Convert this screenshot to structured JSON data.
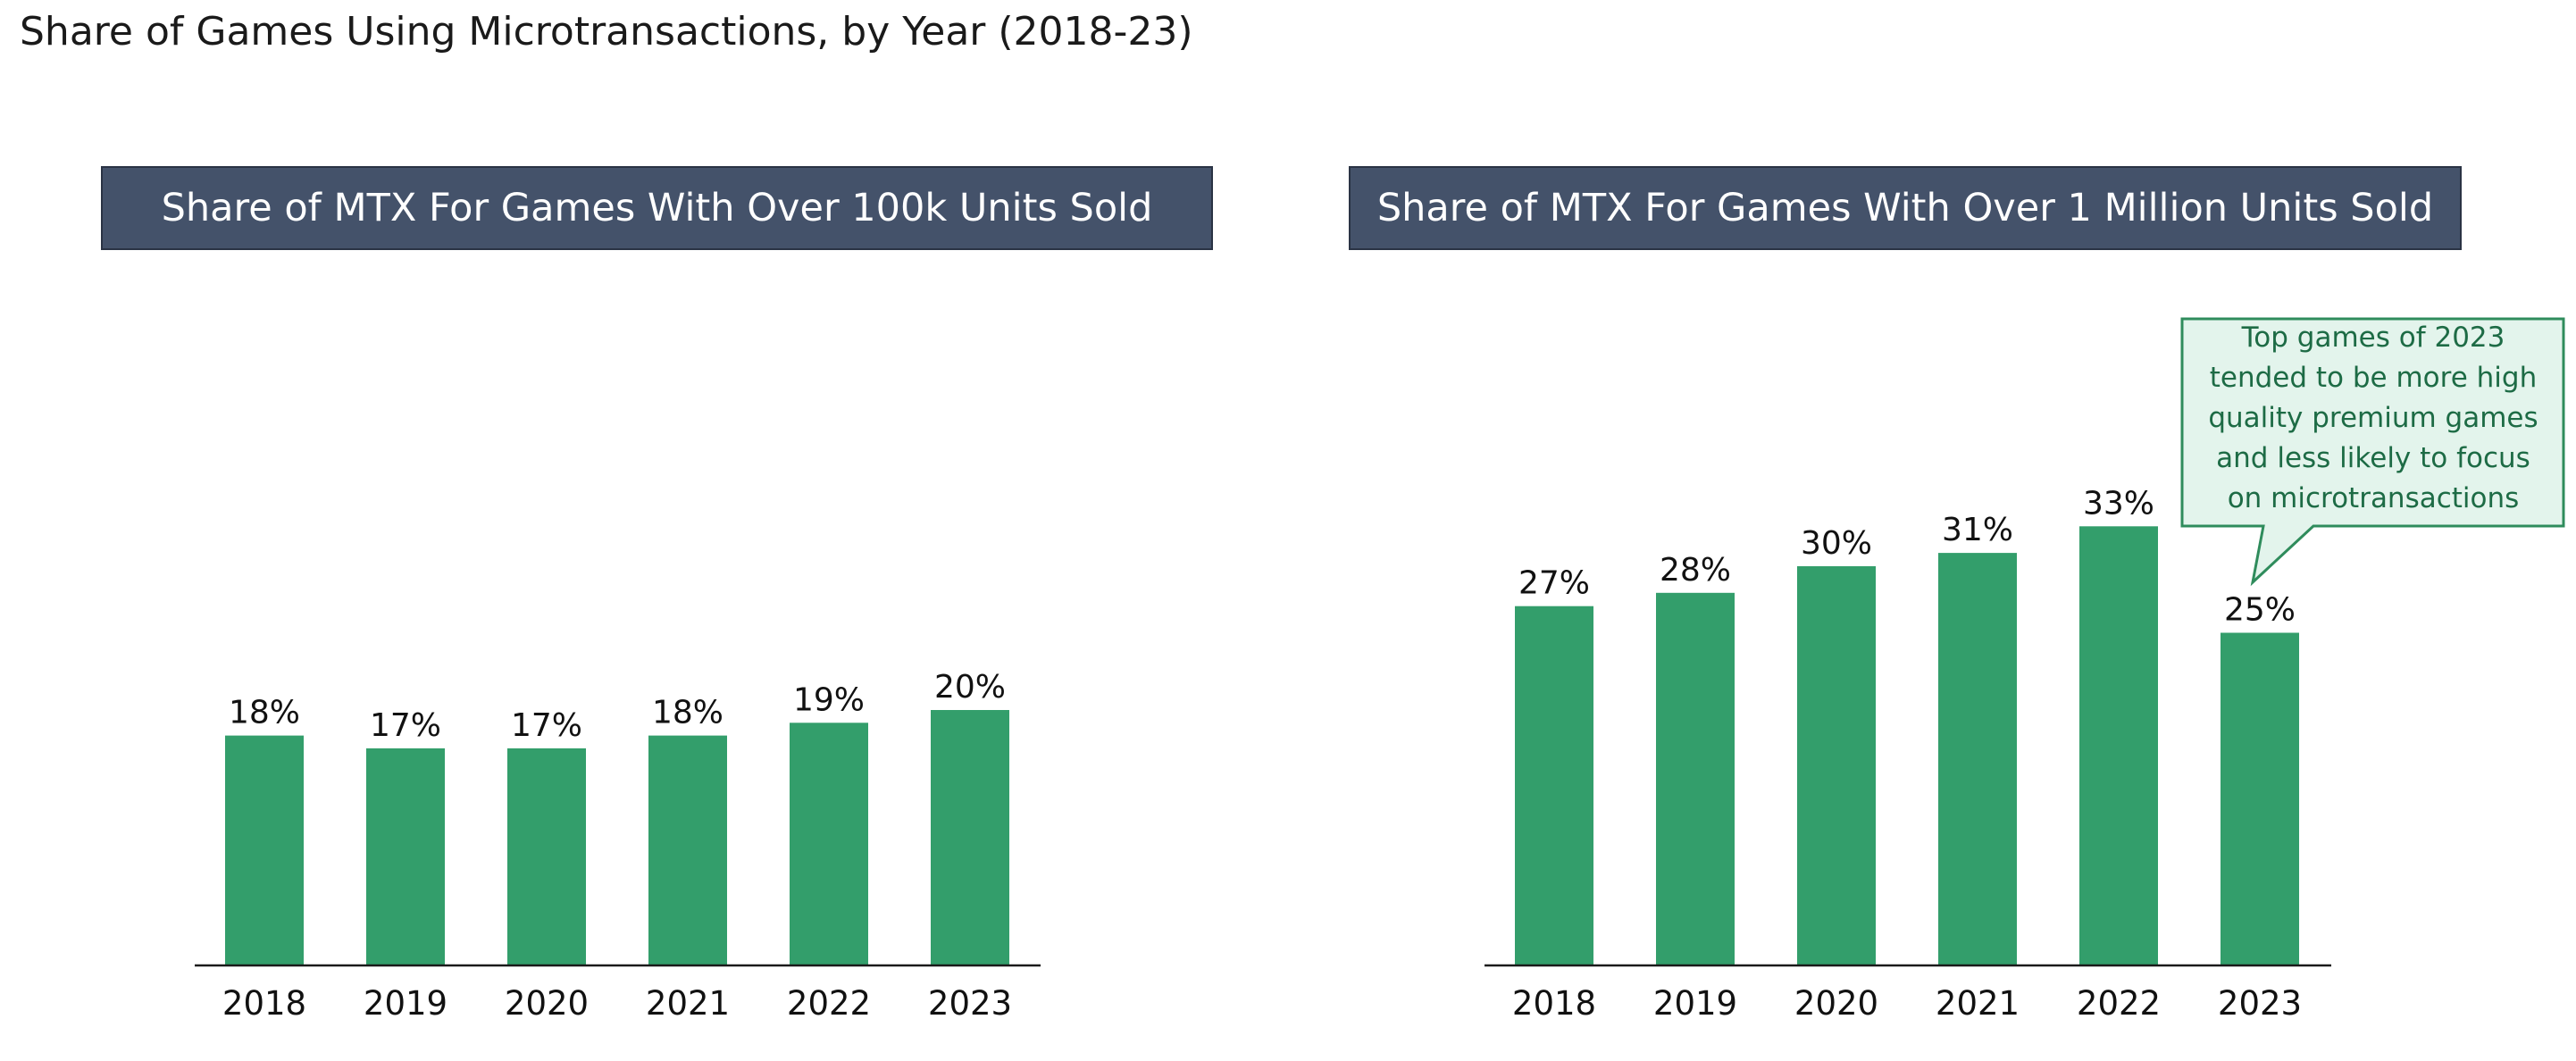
{
  "page": {
    "title": "Share of Games Using Microtransactions, by Year (2018-23)"
  },
  "chart_data": [
    {
      "type": "bar",
      "title": "Share of MTX For Games With Over 100k Units Sold",
      "categories": [
        "2018",
        "2019",
        "2020",
        "2021",
        "2022",
        "2023"
      ],
      "values": [
        18,
        17,
        17,
        18,
        19,
        20
      ],
      "value_labels": [
        "18%",
        "17%",
        "17%",
        "18%",
        "19%",
        "20%"
      ],
      "unit": "%",
      "ylim": [
        0,
        45
      ],
      "grid": false,
      "bar_color": "#339e6b",
      "header_color": "#44526a"
    },
    {
      "type": "bar",
      "title": "Share of MTX For Games With Over 1 Million Units Sold",
      "categories": [
        "2018",
        "2019",
        "2020",
        "2021",
        "2022",
        "2023"
      ],
      "values": [
        27,
        28,
        30,
        31,
        33,
        25
      ],
      "value_labels": [
        "27%",
        "28%",
        "30%",
        "31%",
        "33%",
        "25%"
      ],
      "unit": "%",
      "ylim": [
        0,
        45
      ],
      "grid": false,
      "bar_color": "#339e6b",
      "header_color": "#44526a",
      "annotation": {
        "category": "2023",
        "text": "Top games of 2023 tended to be more high quality premium games and less likely to focus on microtransactions",
        "lines": [
          "Top games of 2023",
          "tended to be more high",
          "quality premium games",
          "and less likely to focus",
          "on microtransactions"
        ],
        "fill": "#e3f4ec",
        "border": "#2f8c5c",
        "text_color": "#1d6b45"
      }
    }
  ]
}
